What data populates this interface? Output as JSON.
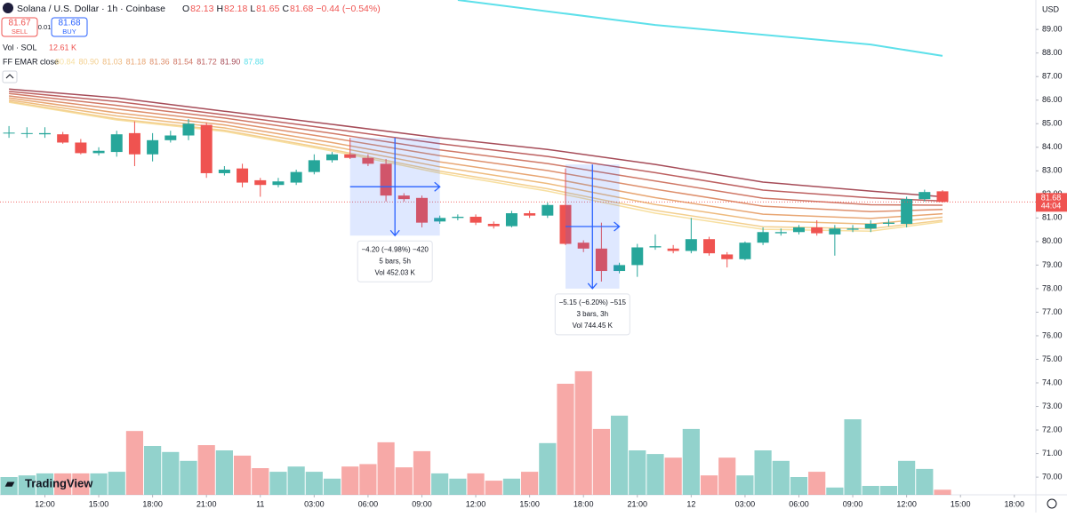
{
  "header": {
    "symbol": "Solana / U.S. Dollar · 1h · Coinbase",
    "ohlc": [
      {
        "label": "O",
        "value": "82.13"
      },
      {
        "label": "H",
        "value": "82.18"
      },
      {
        "label": "L",
        "value": "81.65"
      },
      {
        "label": "C",
        "value": "81.68"
      }
    ],
    "change": "−0.44 (−0.54%)",
    "sell": {
      "price": "81.67",
      "label": "SELL"
    },
    "spread": "0.01",
    "buy": {
      "price": "81.68",
      "label": "BUY"
    },
    "volume_legend": {
      "label": "Vol · SOL",
      "value": "12.61 K"
    },
    "indicator": "FF EMAR close",
    "currency": "USD",
    "countdown": "44:04",
    "logo": "TradingView"
  },
  "chart_data": {
    "type": "candlestick",
    "xlim": [
      -0.5,
      57.2
    ],
    "ylim": [
      69.25,
      90.25
    ],
    "xticks": [
      {
        "value": 2,
        "label": "12:00"
      },
      {
        "value": 5,
        "label": "15:00"
      },
      {
        "value": 8,
        "label": "18:00"
      },
      {
        "value": 11,
        "label": "21:00"
      },
      {
        "value": 14,
        "label": "11"
      },
      {
        "value": 17,
        "label": "03:00"
      },
      {
        "value": 20,
        "label": "06:00"
      },
      {
        "value": 23,
        "label": "09:00"
      },
      {
        "value": 26,
        "label": "12:00"
      },
      {
        "value": 29,
        "label": "15:00"
      },
      {
        "value": 32,
        "label": "18:00"
      },
      {
        "value": 35,
        "label": "21:00"
      },
      {
        "value": 38,
        "label": "12"
      },
      {
        "value": 41,
        "label": "03:00"
      },
      {
        "value": 44,
        "label": "06:00"
      },
      {
        "value": 47,
        "label": "09:00"
      },
      {
        "value": 50,
        "label": "12:00"
      },
      {
        "value": 53,
        "label": "15:00"
      },
      {
        "value": 56,
        "label": "18:00"
      }
    ],
    "yticks": [
      {
        "value": 70,
        "label": "70.00"
      },
      {
        "value": 71,
        "label": "71.00"
      },
      {
        "value": 72,
        "label": "72.00"
      },
      {
        "value": 73,
        "label": "73.00"
      },
      {
        "value": 74,
        "label": "74.00"
      },
      {
        "value": 75,
        "label": "75.00"
      },
      {
        "value": 76,
        "label": "76.00"
      },
      {
        "value": 77,
        "label": "77.00"
      },
      {
        "value": 78,
        "label": "78.00"
      },
      {
        "value": 79,
        "label": "79.00"
      },
      {
        "value": 80,
        "label": "80.00"
      },
      {
        "value": 81,
        "label": "81.00"
      },
      {
        "value": 82,
        "label": "82.00"
      },
      {
        "value": 83,
        "label": "83.00"
      },
      {
        "value": 84,
        "label": "84.00"
      },
      {
        "value": 85,
        "label": "85.00"
      },
      {
        "value": 86,
        "label": "86.00"
      },
      {
        "value": 87,
        "label": "87.00"
      },
      {
        "value": 88,
        "label": "88.00"
      },
      {
        "value": 89,
        "label": "89.00"
      }
    ],
    "grid": false,
    "up_color": "#26a69a",
    "down_color": "#ef5350",
    "open": [
      84.6,
      84.58,
      84.55,
      84.55,
      84.2,
      83.75,
      83.8,
      84.6,
      83.7,
      84.3,
      84.5,
      84.95,
      82.9,
      83.1,
      82.6,
      82.4,
      82.5,
      82.95,
      83.45,
      83.7,
      83.55,
      83.3,
      81.95,
      81.85,
      80.85,
      81.0,
      81.05,
      80.75,
      80.65,
      81.2,
      81.1,
      81.55,
      79.95,
      79.7,
      78.75,
      79.0,
      79.75,
      79.7,
      79.6,
      80.1,
      79.45,
      79.25,
      79.95,
      80.35,
      80.4,
      80.6,
      80.3,
      80.5,
      80.55,
      80.75,
      80.75,
      81.8,
      82.13
    ],
    "high": [
      84.9,
      84.85,
      84.85,
      84.65,
      84.35,
      84.0,
      84.7,
      85.1,
      84.6,
      84.7,
      85.2,
      85.05,
      83.2,
      83.3,
      82.7,
      82.7,
      83.05,
      83.7,
      83.8,
      84.4,
      83.7,
      83.5,
      82.05,
      81.95,
      81.1,
      81.15,
      81.15,
      80.85,
      81.3,
      81.3,
      81.65,
      83.1,
      80.05,
      80.8,
      79.1,
      79.9,
      80.3,
      79.85,
      81.0,
      80.2,
      79.55,
      80.0,
      80.6,
      80.55,
      80.7,
      80.9,
      80.7,
      80.7,
      80.9,
      80.95,
      81.9,
      82.2,
      82.18
    ],
    "low": [
      84.4,
      84.4,
      84.4,
      84.15,
      83.7,
      83.65,
      83.6,
      83.2,
      83.4,
      84.2,
      84.3,
      82.7,
      82.8,
      82.3,
      81.9,
      82.3,
      82.4,
      82.85,
      83.35,
      83.5,
      83.2,
      81.7,
      81.7,
      80.6,
      80.75,
      80.9,
      80.7,
      80.55,
      80.6,
      81.0,
      81.0,
      79.85,
      79.55,
      78.3,
      78.65,
      78.5,
      79.65,
      79.5,
      79.5,
      79.4,
      78.9,
      79.2,
      79.85,
      80.25,
      80.3,
      80.25,
      79.4,
      80.4,
      80.4,
      80.65,
      80.6,
      81.7,
      81.65
    ],
    "close": [
      84.62,
      84.6,
      84.6,
      84.2,
      83.75,
      83.85,
      84.55,
      83.7,
      84.3,
      84.5,
      85.0,
      82.9,
      83.05,
      82.5,
      82.4,
      82.55,
      82.95,
      83.45,
      83.7,
      83.55,
      83.3,
      81.95,
      81.8,
      80.8,
      81.0,
      81.05,
      80.8,
      80.65,
      81.2,
      81.1,
      81.55,
      79.9,
      79.7,
      78.75,
      79.0,
      79.75,
      79.8,
      79.6,
      80.1,
      79.5,
      79.25,
      79.95,
      80.4,
      80.4,
      80.6,
      80.35,
      80.55,
      80.55,
      80.75,
      80.8,
      81.8,
      82.1,
      81.68
    ],
    "volume": [
      44,
      48,
      53,
      53,
      53,
      53,
      57,
      158,
      121,
      106,
      84,
      123,
      110,
      97,
      66,
      57,
      70,
      57,
      40,
      70,
      76,
      130,
      68,
      108,
      53,
      40,
      53,
      35,
      40,
      57,
      128,
      275,
      306,
      163,
      196,
      110,
      101,
      92,
      163,
      48,
      92,
      48,
      110,
      84,
      44,
      57,
      18,
      187,
      22,
      22,
      84,
      64,
      12.61
    ],
    "volume_lim": [
      0,
      330
    ],
    "series": [
      {
        "color": "#f7dfa0",
        "legend_label": "80.84",
        "x": [
          0,
          6,
          12,
          18,
          24,
          30,
          36,
          42,
          48,
          52
        ],
        "values": [
          85.91,
          85.16,
          84.67,
          83.84,
          82.9,
          82.14,
          81.2,
          80.52,
          80.44,
          80.84
        ]
      },
      {
        "color": "#f3cf8e",
        "legend_label": "80.90",
        "x": [
          0,
          6,
          12,
          18,
          24,
          30,
          36,
          42,
          48,
          52
        ],
        "values": [
          85.94,
          85.21,
          84.72,
          83.9,
          82.99,
          82.24,
          81.32,
          80.63,
          80.54,
          80.9
        ]
      },
      {
        "color": "#eebb7e",
        "legend_label": "81.03",
        "x": [
          0,
          6,
          12,
          18,
          24,
          30,
          36,
          42,
          48,
          52
        ],
        "values": [
          86.01,
          85.33,
          84.82,
          84.04,
          83.17,
          82.46,
          81.57,
          80.88,
          80.74,
          81.03
        ]
      },
      {
        "color": "#e8a673",
        "legend_label": "81.18",
        "x": [
          0,
          6,
          12,
          18,
          24,
          30,
          36,
          42,
          48,
          52
        ],
        "values": [
          86.09,
          85.46,
          84.95,
          84.2,
          83.38,
          82.71,
          81.86,
          81.16,
          80.98,
          81.18
        ]
      },
      {
        "color": "#de8f6c",
        "legend_label": "81.36",
        "x": [
          0,
          6,
          12,
          18,
          24,
          30,
          36,
          42,
          48,
          52
        ],
        "values": [
          86.18,
          85.62,
          85.09,
          84.39,
          83.64,
          83.01,
          82.22,
          81.5,
          81.27,
          81.36
        ]
      },
      {
        "color": "#d07866",
        "legend_label": "81.54",
        "x": [
          0,
          6,
          12,
          18,
          24,
          30,
          36,
          42,
          48,
          52
        ],
        "values": [
          86.28,
          85.78,
          85.24,
          84.59,
          83.89,
          83.31,
          82.57,
          81.84,
          81.56,
          81.54
        ]
      },
      {
        "color": "#bd6060",
        "legend_label": "81.72",
        "x": [
          0,
          6,
          12,
          18,
          24,
          30,
          36,
          42,
          48,
          52
        ],
        "values": [
          86.37,
          85.94,
          85.38,
          84.78,
          84.15,
          83.61,
          82.92,
          82.18,
          81.85,
          81.72
        ]
      },
      {
        "color": "#a64c58",
        "legend_label": "81.90",
        "x": [
          0,
          6,
          12,
          18,
          24,
          30,
          36,
          42,
          48,
          52
        ],
        "values": [
          86.47,
          86.1,
          85.53,
          84.97,
          84.4,
          83.91,
          83.27,
          82.52,
          82.14,
          81.9
        ]
      },
      {
        "color": "#5ee0ea",
        "legend_label": "87.88",
        "x": [
          25,
          36,
          48,
          52
        ],
        "values": [
          90.25,
          89.19,
          88.36,
          87.88
        ]
      }
    ],
    "measurements": [
      {
        "start": 19,
        "end": 24,
        "top": 84.4,
        "bottom": 80.25,
        "lines": [
          "−4.20 (−4.98%) −420",
          "5 bars, 5h",
          "Vol 452.03 K"
        ]
      },
      {
        "start": 31,
        "end": 34,
        "top": 83.27,
        "bottom": 78.0,
        "lines": [
          "−5.15 (−6.20%) −515",
          "3 bars, 3h",
          "Vol 744.45 K"
        ]
      }
    ]
  }
}
